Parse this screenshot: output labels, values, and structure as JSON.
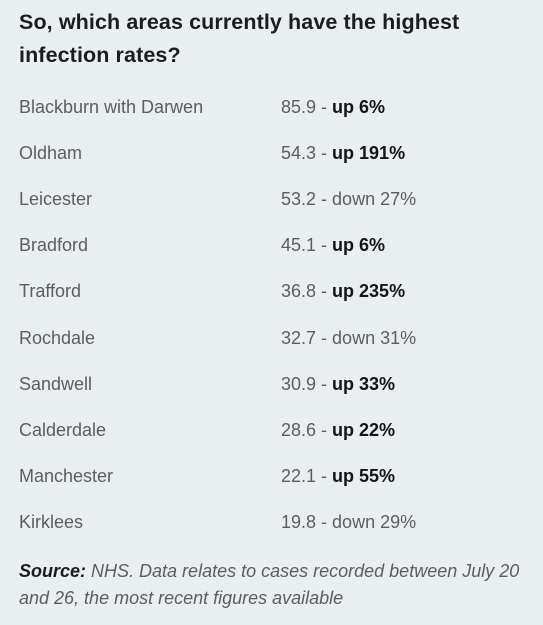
{
  "heading": "So, which areas currently have the highest infection rates?",
  "separator": " - ",
  "rows": [
    {
      "area": "Blackburn with Darwen",
      "rate": "85.9",
      "change": "up 6%",
      "direction": "up"
    },
    {
      "area": "Oldham",
      "rate": "54.3",
      "change": "up 191%",
      "direction": "up"
    },
    {
      "area": "Leicester",
      "rate": "53.2",
      "change": "down 27%",
      "direction": "down"
    },
    {
      "area": "Bradford",
      "rate": "45.1",
      "change": "up 6%",
      "direction": "up"
    },
    {
      "area": "Trafford",
      "rate": "36.8",
      "change": "up 235%",
      "direction": "up"
    },
    {
      "area": "Rochdale",
      "rate": "32.7",
      "change": "down 31%",
      "direction": "down"
    },
    {
      "area": "Sandwell",
      "rate": "30.9",
      "change": "up 33%",
      "direction": "up"
    },
    {
      "area": "Calderdale",
      "rate": "28.6",
      "change": "up 22%",
      "direction": "up"
    },
    {
      "area": "Manchester",
      "rate": "22.1",
      "change": "up 55%",
      "direction": "up"
    },
    {
      "area": "Kirklees",
      "rate": "19.8",
      "change": "down 29%",
      "direction": "down"
    }
  ],
  "source": {
    "label": "Source:",
    "text": " NHS. Data relates to cases recorded between July 20 and 26, the most recent figures available"
  }
}
